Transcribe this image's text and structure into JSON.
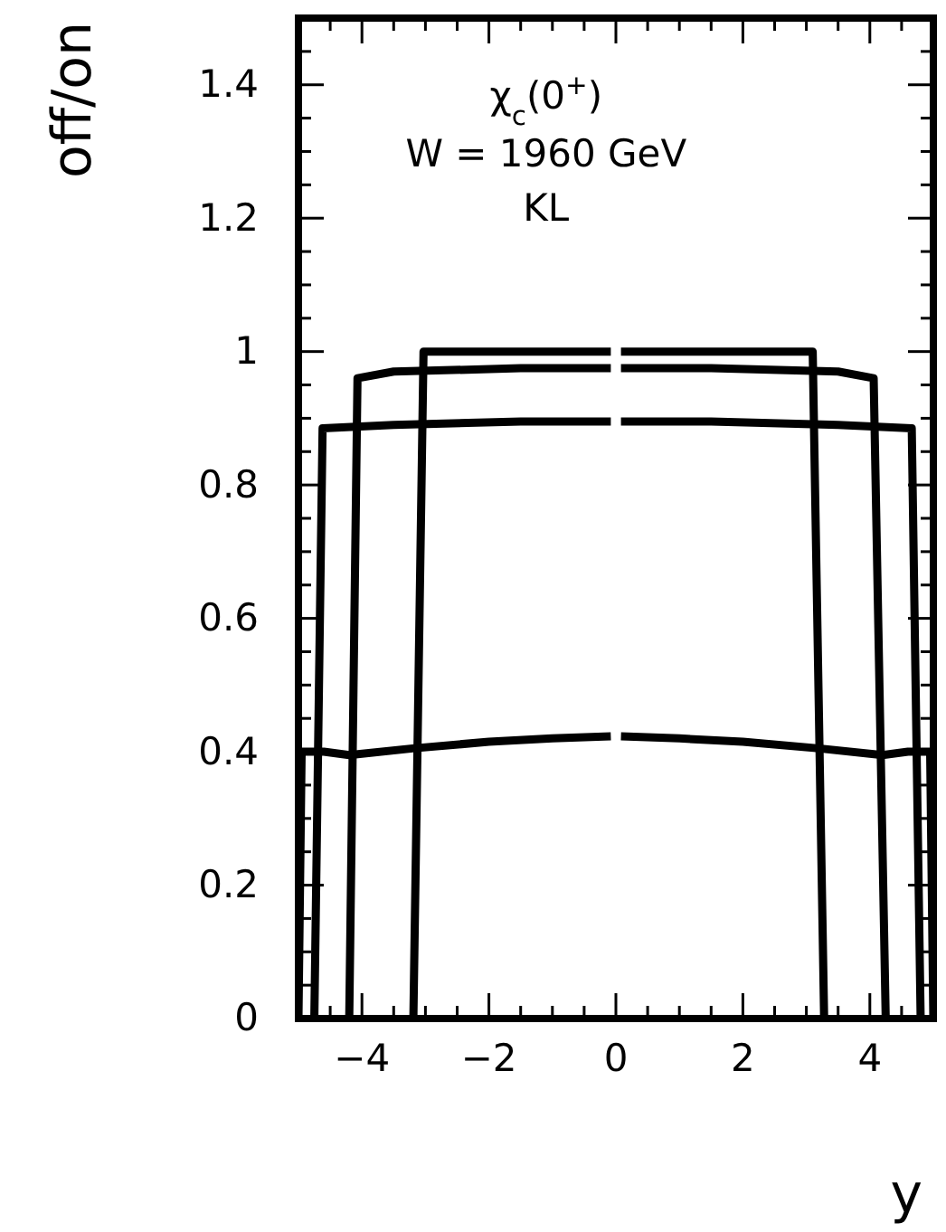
{
  "chart_data": {
    "type": "line",
    "xlabel": "y",
    "ylabel": "off/on",
    "annotations": [
      "χ$_{c}$(0$^{+}$)",
      "W = 1960 GeV",
      "KL"
    ],
    "xlim": [
      -5,
      5
    ],
    "ylim": [
      0,
      1.5
    ],
    "xticks": [
      -4,
      -2,
      0,
      2,
      4
    ],
    "yticks": [
      0,
      0.2,
      0.4,
      0.6,
      0.8,
      1,
      1.2,
      1.4
    ],
    "grid": false,
    "marker": "none",
    "line_style": "solid",
    "series": [
      {
        "color": "#000000",
        "x": [
          -3.19,
          -3.03,
          -1.5,
          -0.08,
          0,
          0.08,
          1.5,
          3.1,
          3.28
        ],
        "values": [
          0,
          1.0,
          1.0,
          1.0,
          null,
          1.0,
          1.0,
          1.0,
          0
        ]
      },
      {
        "color": "#000000",
        "x": [
          -4.2,
          -4.07,
          -3.5,
          -1.5,
          -0.08,
          0,
          0.08,
          1.5,
          3.5,
          4.06,
          4.25
        ],
        "values": [
          0,
          0.96,
          0.97,
          0.975,
          0.975,
          null,
          0.975,
          0.975,
          0.97,
          0.96,
          0
        ]
      },
      {
        "color": "#000000",
        "x": [
          -4.75,
          -4.62,
          -3.5,
          -1.5,
          -0.08,
          0,
          0.08,
          1.5,
          3.5,
          4.66,
          4.8
        ],
        "values": [
          0,
          0.885,
          0.89,
          0.895,
          0.895,
          null,
          0.895,
          0.895,
          0.89,
          0.885,
          0
        ]
      },
      {
        "color": "#000000",
        "x": [
          -5,
          -4.95,
          -4.6,
          -4.2,
          -3.2,
          -2,
          -1,
          -0.08,
          0,
          0.08,
          1,
          2,
          3.2,
          4.2,
          4.6,
          4.95,
          5
        ],
        "values": [
          0,
          0.4,
          0.4,
          0.395,
          0.405,
          0.415,
          0.42,
          0.423,
          null,
          0.423,
          0.42,
          0.415,
          0.405,
          0.395,
          0.4,
          0.4,
          0
        ]
      }
    ]
  }
}
